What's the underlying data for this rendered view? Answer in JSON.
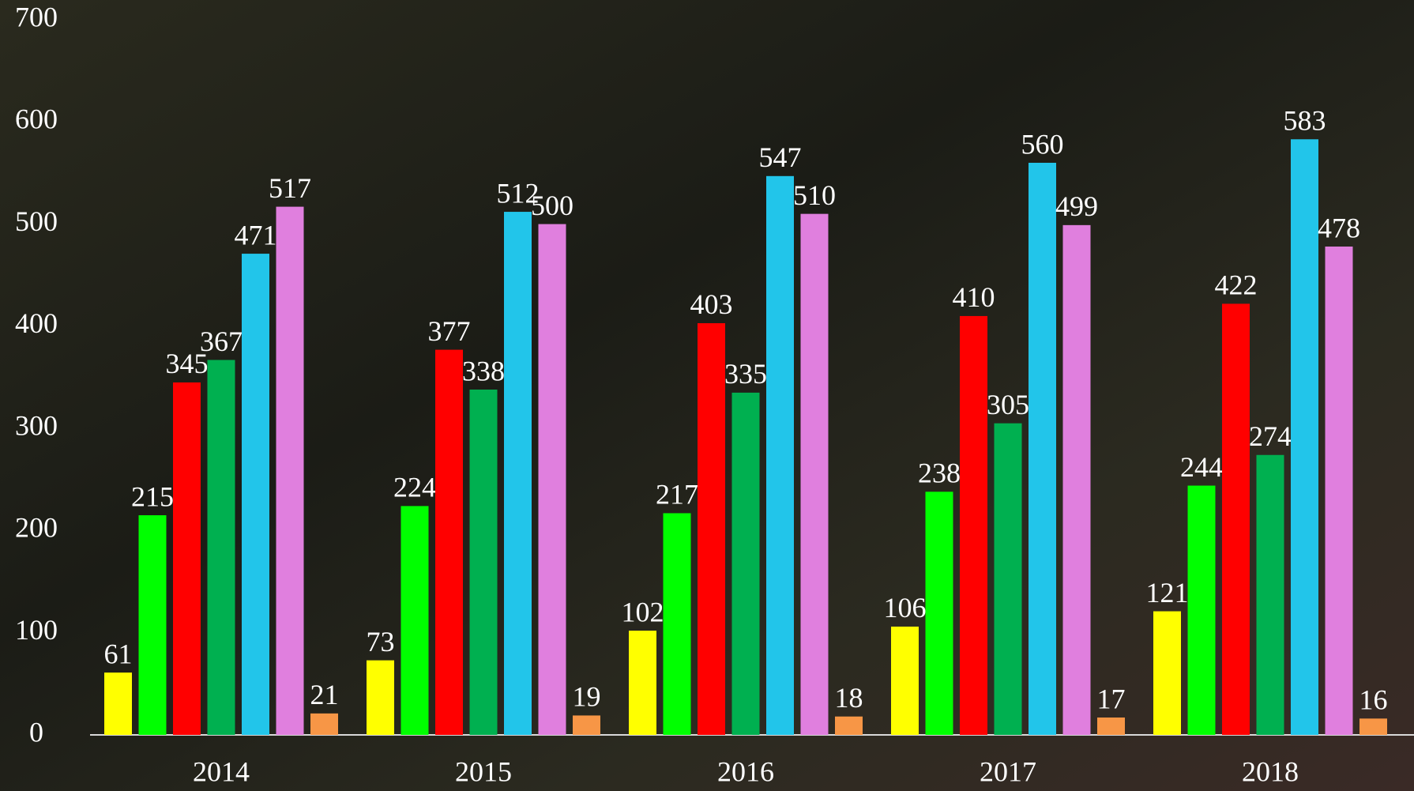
{
  "chart_data": {
    "type": "bar",
    "categories": [
      "2014",
      "2015",
      "2016",
      "2017",
      "2018"
    ],
    "series": [
      {
        "color": "#ffff00",
        "values": [
          61,
          73,
          102,
          106,
          121
        ]
      },
      {
        "color": "#00ff00",
        "values": [
          215,
          224,
          217,
          238,
          244
        ]
      },
      {
        "color": "#ff0000",
        "values": [
          345,
          377,
          403,
          410,
          422
        ]
      },
      {
        "color": "#00b050",
        "values": [
          367,
          338,
          335,
          305,
          274
        ]
      },
      {
        "color": "#22c5ea",
        "values": [
          471,
          512,
          547,
          560,
          583
        ]
      },
      {
        "color": "#e07fde",
        "values": [
          517,
          500,
          510,
          499,
          478
        ]
      },
      {
        "color": "#f79646",
        "values": [
          21,
          19,
          18,
          17,
          16
        ]
      }
    ],
    "ylim": [
      0,
      700
    ],
    "yticks": [
      0,
      100,
      200,
      300,
      400,
      500,
      600,
      700
    ],
    "grid": false
  }
}
